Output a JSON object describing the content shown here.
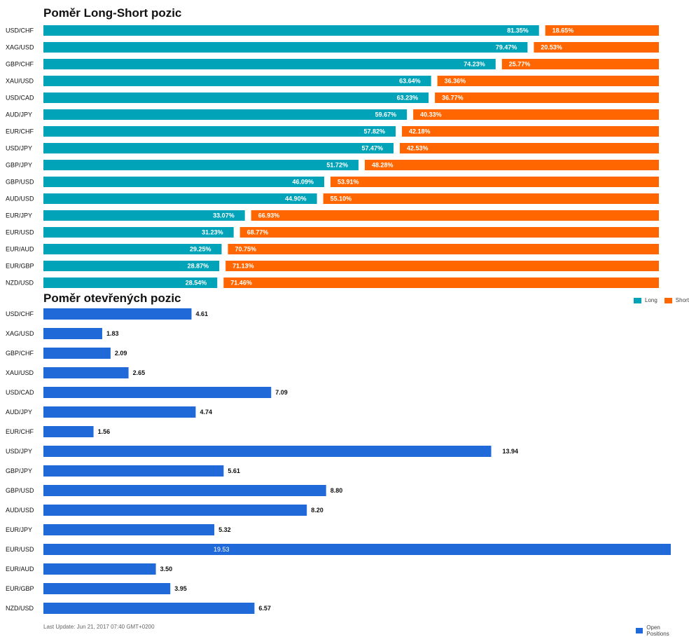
{
  "colors": {
    "long": "#00a3b8",
    "short": "#ff6600",
    "open": "#1f6ad8"
  },
  "chart_data": [
    {
      "type": "bar",
      "stacked": true,
      "orientation": "horizontal",
      "title": "Poměr Long-Short pozic",
      "categories": [
        "USD/CHF",
        "XAG/USD",
        "GBP/CHF",
        "XAU/USD",
        "USD/CAD",
        "AUD/JPY",
        "EUR/CHF",
        "USD/JPY",
        "GBP/JPY",
        "GBP/USD",
        "AUD/USD",
        "EUR/JPY",
        "EUR/USD",
        "EUR/AUD",
        "EUR/GBP",
        "NZD/USD"
      ],
      "series": [
        {
          "name": "Long",
          "values": [
            81.35,
            79.47,
            74.23,
            63.64,
            63.23,
            59.67,
            57.82,
            57.47,
            51.72,
            46.09,
            44.9,
            33.07,
            31.23,
            29.25,
            28.87,
            28.54
          ],
          "labels": [
            "81.35%",
            "79.47%",
            "74.23%",
            "63.64%",
            "63.23%",
            "59.67%",
            "57.82%",
            "57.47%",
            "51.72%",
            "46.09%",
            "44.90%",
            "33.07%",
            "31.23%",
            "29.25%",
            "28.87%",
            "28.54%"
          ]
        },
        {
          "name": "Short",
          "values": [
            18.65,
            20.53,
            25.77,
            36.36,
            36.77,
            40.33,
            42.18,
            42.53,
            48.28,
            53.91,
            55.1,
            66.93,
            68.77,
            70.75,
            71.13,
            71.46
          ],
          "labels": [
            "18.65%",
            "20.53%",
            "25.77%",
            "36.36%",
            "36.77%",
            "40.33%",
            "42.18%",
            "42.53%",
            "48.28%",
            "53.91%",
            "55.10%",
            "66.93%",
            "68.77%",
            "70.75%",
            "71.13%",
            "71.46%"
          ]
        }
      ],
      "xlim": [
        0,
        100
      ],
      "grid": false,
      "legend_position": "bottom-right"
    },
    {
      "type": "bar",
      "orientation": "horizontal",
      "title": "Poměr otevřených pozic",
      "categories": [
        "USD/CHF",
        "XAG/USD",
        "GBP/CHF",
        "XAU/USD",
        "USD/CAD",
        "AUD/JPY",
        "EUR/CHF",
        "USD/JPY",
        "GBP/JPY",
        "GBP/USD",
        "AUD/USD",
        "EUR/JPY",
        "EUR/USD",
        "EUR/AUD",
        "EUR/GBP",
        "NZD/USD"
      ],
      "series": [
        {
          "name": "Open Positions",
          "values": [
            4.61,
            1.83,
            2.09,
            2.65,
            7.09,
            4.74,
            1.56,
            13.94,
            5.61,
            8.8,
            8.2,
            5.32,
            19.53,
            3.5,
            3.95,
            6.57
          ],
          "labels": [
            "4.61",
            "1.83",
            "2.09",
            "2.65",
            "7.09",
            "4.74",
            "1.56",
            "13.94",
            "5.61",
            "8.80",
            "8.20",
            "5.32",
            "19.53",
            "3.50",
            "3.95",
            "6.57"
          ]
        }
      ],
      "xlim": [
        0,
        19.53
      ],
      "grid": false,
      "legend_position": "bottom-right"
    }
  ],
  "footer": {
    "last_update": "Last Update: Jun 21, 2017 07:40 GMT+0200"
  }
}
